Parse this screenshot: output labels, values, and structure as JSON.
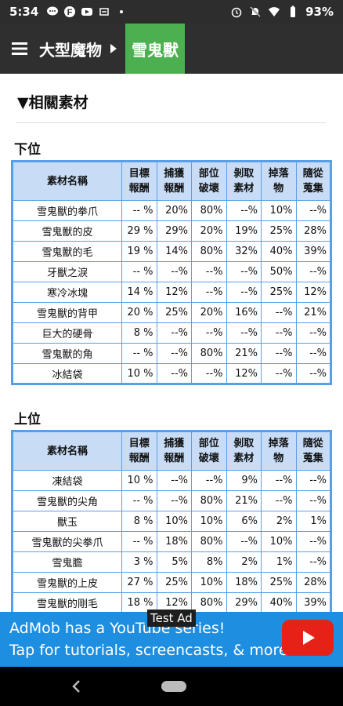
{
  "status_bar": {
    "time": "5:34",
    "battery": "93%"
  },
  "app_bar": {
    "breadcrumb_parent": "大型魔物",
    "breadcrumb_current": "雪鬼獸",
    "accent_color": "#4caf50"
  },
  "section": {
    "title": "▼相關素材"
  },
  "tables": {
    "headers": [
      "素材名稱",
      "目標\n報酬",
      "捕獲\n報酬",
      "部位\n破壞",
      "剝取\n素材",
      "掉落\n物",
      "隨從\n蒐集"
    ],
    "low": {
      "title": "下位",
      "rows": [
        [
          "雪鬼獸的拳爪",
          "-- %",
          "20%",
          "80%",
          "--%",
          "10%",
          "--%"
        ],
        [
          "雪鬼獸的皮",
          "29 %",
          "29%",
          "20%",
          "19%",
          "25%",
          "28%"
        ],
        [
          "雪鬼獸的毛",
          "19 %",
          "14%",
          "80%",
          "32%",
          "40%",
          "39%"
        ],
        [
          "牙獸之淚",
          "-- %",
          "--%",
          "--%",
          "--%",
          "50%",
          "--%"
        ],
        [
          "寒冷冰塊",
          "14 %",
          "12%",
          "--%",
          "--%",
          "25%",
          "12%"
        ],
        [
          "雪鬼獸的背甲",
          "20 %",
          "25%",
          "20%",
          "16%",
          "--%",
          "21%"
        ],
        [
          "巨大的硬骨",
          "8 %",
          "--%",
          "--%",
          "--%",
          "--%",
          "--%"
        ],
        [
          "雪鬼獸的角",
          "-- %",
          "--%",
          "80%",
          "21%",
          "--%",
          "--%"
        ],
        [
          "冰結袋",
          "10 %",
          "--%",
          "--%",
          "12%",
          "--%",
          "--%"
        ]
      ]
    },
    "high": {
      "title": "上位",
      "rows": [
        [
          "凍結袋",
          "10 %",
          "--%",
          "--%",
          "9%",
          "--%",
          "--%"
        ],
        [
          "雪鬼獸的尖角",
          "-- %",
          "--%",
          "80%",
          "21%",
          "--%",
          "--%"
        ],
        [
          "獸玉",
          "8 %",
          "10%",
          "10%",
          "6%",
          "2%",
          "1%"
        ],
        [
          "雪鬼獸的尖拳爪",
          "-- %",
          "18%",
          "80%",
          "--%",
          "10%",
          "--%"
        ],
        [
          "雪鬼膽",
          "3 %",
          "5%",
          "8%",
          "2%",
          "1%",
          "--%"
        ],
        [
          "雪鬼獸的上皮",
          "27 %",
          "25%",
          "10%",
          "18%",
          "25%",
          "28%"
        ],
        [
          "雪鬼獸的剛毛",
          "18 %",
          "12%",
          "80%",
          "29%",
          "40%",
          "39%"
        ]
      ]
    }
  },
  "ad": {
    "badge": "Test Ad",
    "line1": "AdMob has a YouTube series!",
    "line2": "Tap for tutorials, screencasts, & more.",
    "brand_color": "#1e8ee0",
    "icon": "youtube-play-icon"
  },
  "nav": {
    "back_icon": "back-icon",
    "home_icon": "home-pill-icon"
  }
}
